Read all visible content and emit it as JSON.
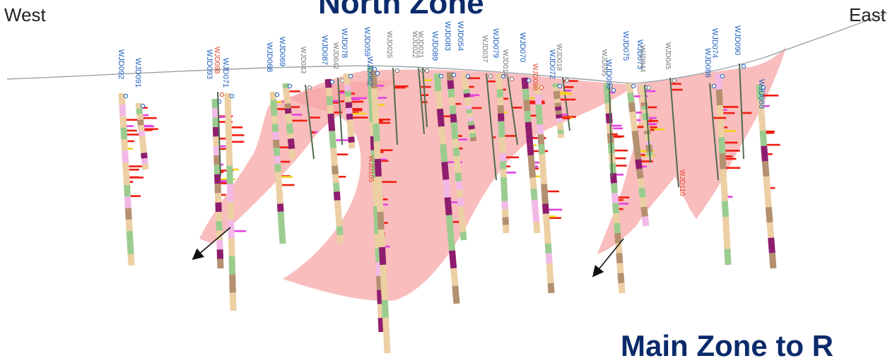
{
  "labels": {
    "west": "West",
    "east": "East",
    "title_top": "North Zone",
    "title_bottom": "Main Zone to R"
  },
  "colors": {
    "zone_fill": "#f7a3a3",
    "hole_blue": "#1f5fbf",
    "hole_gray": "#777777",
    "hole_red": "#e0442a",
    "topo": "#9aa3a8",
    "title": "#0a2a6b",
    "lith_tan": "#eccfa3",
    "lith_green": "#9bcc8f",
    "lith_brown": "#b49070",
    "lith_purple": "#8e1d6e",
    "lith_pink": "#f2b9e6",
    "assay_red": "#ef1d10",
    "assay_magenta": "#e043e0",
    "assay_yellow": "#f2d21b"
  },
  "holes": [
    {
      "id": "WJD092",
      "color": "blue"
    },
    {
      "id": "WJD091",
      "color": "blue"
    },
    {
      "id": "WJD093",
      "color": "blue"
    },
    {
      "id": "WJD098",
      "color": "red"
    },
    {
      "id": "WJD071",
      "color": "blue"
    },
    {
      "id": "WJD068",
      "color": "blue"
    },
    {
      "id": "WJD069",
      "color": "blue"
    },
    {
      "id": "WJD043",
      "color": "gray"
    },
    {
      "id": "WJD087",
      "color": "blue"
    },
    {
      "id": "WJD042",
      "color": "gray"
    },
    {
      "id": "WJD078",
      "color": "blue"
    },
    {
      "id": "WJD059",
      "color": "blue"
    },
    {
      "id": "WJD062",
      "color": "blue"
    },
    {
      "id": "WJD025",
      "color": "gray"
    },
    {
      "id": "WJD022",
      "color": "gray"
    },
    {
      "id": "WJD021",
      "color": "gray"
    },
    {
      "id": "WJD089",
      "color": "blue"
    },
    {
      "id": "WJD083",
      "color": "blue"
    },
    {
      "id": "WJD054",
      "color": "blue"
    },
    {
      "id": "WJD037",
      "color": "gray"
    },
    {
      "id": "WJD079",
      "color": "blue"
    },
    {
      "id": "WJD014",
      "color": "gray"
    },
    {
      "id": "WJD070",
      "color": "blue"
    },
    {
      "id": "WJD098",
      "color": "red"
    },
    {
      "id": "WJD018",
      "color": "gray"
    },
    {
      "id": "WJD072",
      "color": "blue"
    },
    {
      "id": "WJD095",
      "color": "gray"
    },
    {
      "id": "WJD096",
      "color": "blue"
    },
    {
      "id": "WJD075",
      "color": "blue"
    },
    {
      "id": "WJD073",
      "color": "blue"
    },
    {
      "id": "WJD044",
      "color": "gray"
    },
    {
      "id": "WJD045",
      "color": "gray"
    },
    {
      "id": "WJD074",
      "color": "blue"
    },
    {
      "id": "WJD086",
      "color": "blue"
    },
    {
      "id": "WJD090",
      "color": "blue"
    },
    {
      "id": "WJD088",
      "color": "blue"
    },
    {
      "id": "WJD105",
      "color": "red"
    },
    {
      "id": "WJD110",
      "color": "red"
    }
  ]
}
